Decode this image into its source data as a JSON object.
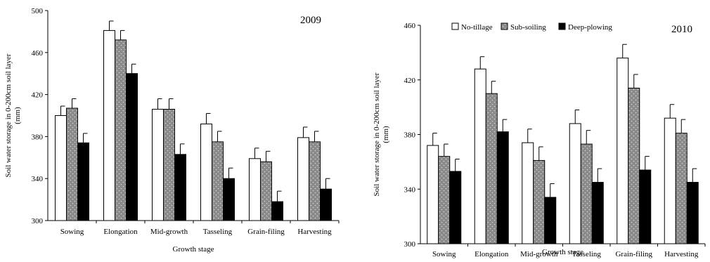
{
  "chart_data": [
    {
      "type": "bar",
      "title": "2009",
      "xlabel": "Growth stage",
      "ylabel_lines": [
        "Soil  water storage in 0-200cm soil layer",
        "(mm)"
      ],
      "ylim": [
        300,
        500
      ],
      "yticks": [
        "300",
        "340",
        "380",
        "420",
        "460",
        "500"
      ],
      "ytick_values": [
        300,
        340,
        380,
        420,
        460,
        500
      ],
      "categories": [
        "Sowing",
        "Elongation",
        "Mid-growth",
        "Tasseling",
        "Grain-filing",
        "Harvesting"
      ],
      "legend": "none",
      "series": [
        {
          "name": "No-tillage",
          "values": [
            400,
            481,
            406,
            392,
            359,
            379
          ],
          "errors": [
            9,
            9,
            10,
            10,
            10,
            10
          ]
        },
        {
          "name": "Sub-soiling",
          "values": [
            407,
            472,
            406,
            375,
            356,
            375
          ],
          "errors": [
            9,
            9,
            10,
            10,
            10,
            10
          ]
        },
        {
          "name": "Deep-plowing",
          "values": [
            374,
            440,
            363,
            340,
            318,
            330
          ],
          "errors": [
            9,
            9,
            10,
            10,
            10,
            10
          ]
        }
      ]
    },
    {
      "type": "bar",
      "title": "2010",
      "xlabel": "Growth stage",
      "ylabel_lines": [
        "Soil water storage in 0-200cm soil layer",
        "(mm)"
      ],
      "ylim": [
        300,
        460
      ],
      "yticks": [
        "300",
        "340",
        "380",
        "420",
        "460"
      ],
      "ytick_values": [
        300,
        340,
        380,
        420,
        460
      ],
      "categories": [
        "Sowing",
        "Elongation",
        "Mid-growth",
        "Tasseling",
        "Grain-filing",
        "Harvesting"
      ],
      "legend": "top",
      "series": [
        {
          "name": "No-tillage",
          "values": [
            372,
            428,
            374,
            388,
            436,
            392
          ],
          "errors": [
            9,
            9,
            10,
            10,
            10,
            10
          ]
        },
        {
          "name": "Sub-soiling",
          "values": [
            364,
            410,
            361,
            373,
            414,
            381
          ],
          "errors": [
            9,
            9,
            10,
            10,
            10,
            10
          ]
        },
        {
          "name": "Deep-plowing",
          "values": [
            353,
            382,
            334,
            345,
            354,
            345
          ],
          "errors": [
            9,
            9,
            10,
            10,
            10,
            10
          ]
        }
      ]
    }
  ],
  "colors": {
    "no_tillage": "#ffffff",
    "sub_soiling": "#8a8a8a",
    "deep_plowing": "#000000",
    "axis": "#000000"
  }
}
